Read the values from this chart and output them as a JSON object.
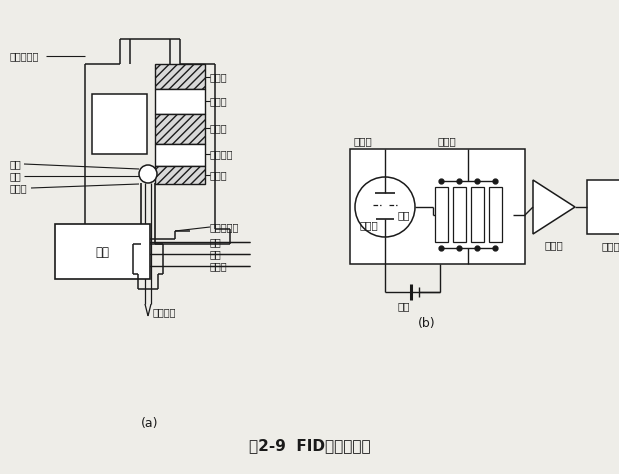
{
  "title": "图2-9  FID结构示意图",
  "title_fontsize": 11,
  "bg_color": "#eeede8",
  "line_color": "#1a1a1a",
  "labels": {
    "jiance": "检测器筒体",
    "huoyan": "火焰",
    "penzui": "喷嘴",
    "jueyuanzi_l": "绝缘子",
    "jueyuanzi_t": "绝缘子",
    "shoji": "收集极",
    "jihuaji": "极化极",
    "jidianhuoqi": "及点火器",
    "jueyuanzi_b": "绝缘子",
    "kongqi_san": "空气扩散器",
    "kongqi": "空气",
    "qingqi": "氢气",
    "weichuiqi": "尾吹气",
    "maoxiguan": "毛细管柱",
    "dizuo": "底座",
    "label_a": "(a)",
    "lizi": "离子室",
    "shoji_b": "收集极",
    "gaoju": "高阻",
    "fasheji": "发射极",
    "dianyuan": "电源",
    "fangdaqi": "放大器",
    "jiluzhi": "记录器",
    "label_b": "(b)"
  }
}
